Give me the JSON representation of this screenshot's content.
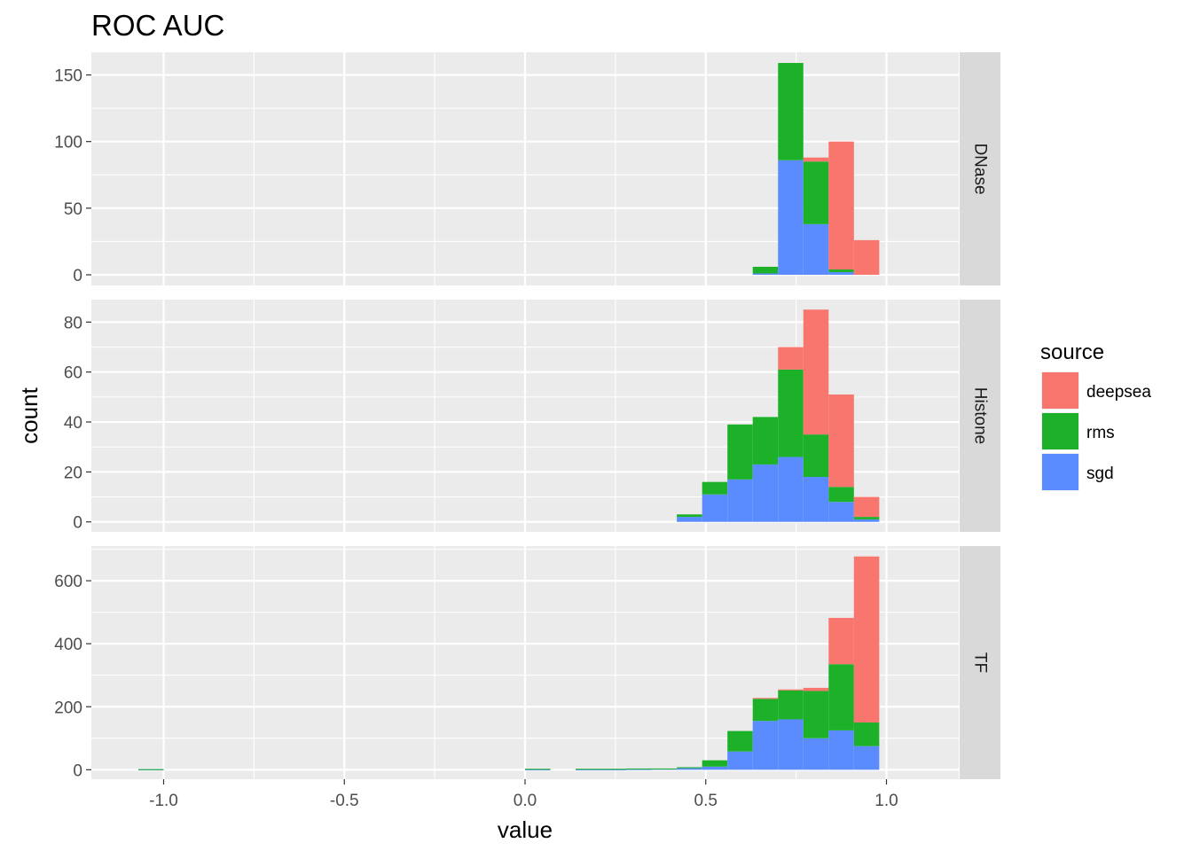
{
  "chart_data": {
    "type": "bar",
    "subtype": "stacked-histogram",
    "title": "ROC AUC",
    "xlabel": "value",
    "ylabel": "count",
    "xlim": [
      -1.2,
      1.2
    ],
    "x_ticks": [
      -1.0,
      -0.5,
      0.0,
      0.5,
      1.0
    ],
    "x_tick_labels": [
      "-1.0",
      "-0.5",
      "0.0",
      "0.5",
      "1.0"
    ],
    "bin_width": 0.07,
    "grid": true,
    "legend": {
      "title": "source",
      "placement": "right",
      "entries": [
        {
          "name": "deepsea",
          "color": "#F8766D"
        },
        {
          "name": "rms",
          "color": "#1DB12A"
        },
        {
          "name": "sgd",
          "color": "#5B8CFF"
        }
      ]
    },
    "stack_order_bottom_to_top": [
      "sgd",
      "rms",
      "deepsea"
    ],
    "panels": [
      {
        "label": "DNase",
        "ylim": [
          -8,
          167
        ],
        "y_ticks": [
          0,
          50,
          100,
          150
        ],
        "bins": [
          {
            "x": 0.665,
            "sgd": 1,
            "rms": 5,
            "deepsea": 0
          },
          {
            "x": 0.735,
            "sgd": 86,
            "rms": 73,
            "deepsea": 0
          },
          {
            "x": 0.805,
            "sgd": 38,
            "rms": 47,
            "deepsea": 3
          },
          {
            "x": 0.875,
            "sgd": 2,
            "rms": 2,
            "deepsea": 96
          },
          {
            "x": 0.945,
            "sgd": 0,
            "rms": 0,
            "deepsea": 26
          }
        ]
      },
      {
        "label": "Histone",
        "ylim": [
          -4,
          89
        ],
        "y_ticks": [
          0,
          20,
          40,
          60,
          80
        ],
        "bins": [
          {
            "x": 0.455,
            "sgd": 2,
            "rms": 1,
            "deepsea": 0
          },
          {
            "x": 0.525,
            "sgd": 11,
            "rms": 5,
            "deepsea": 0
          },
          {
            "x": 0.595,
            "sgd": 17,
            "rms": 22,
            "deepsea": 0
          },
          {
            "x": 0.665,
            "sgd": 23,
            "rms": 19,
            "deepsea": 0
          },
          {
            "x": 0.735,
            "sgd": 26,
            "rms": 35,
            "deepsea": 9
          },
          {
            "x": 0.805,
            "sgd": 18,
            "rms": 17,
            "deepsea": 50
          },
          {
            "x": 0.875,
            "sgd": 8,
            "rms": 6,
            "deepsea": 37
          },
          {
            "x": 0.945,
            "sgd": 1,
            "rms": 1,
            "deepsea": 8
          }
        ]
      },
      {
        "label": "TF",
        "ylim": [
          -30,
          710
        ],
        "y_ticks": [
          0,
          200,
          400,
          600
        ],
        "bins": [
          {
            "x": -1.035,
            "sgd": 1,
            "rms": 1,
            "deepsea": 0
          },
          {
            "x": 0.035,
            "sgd": 1,
            "rms": 2,
            "deepsea": 0
          },
          {
            "x": 0.175,
            "sgd": 1,
            "rms": 2,
            "deepsea": 0
          },
          {
            "x": 0.245,
            "sgd": 1,
            "rms": 2,
            "deepsea": 0
          },
          {
            "x": 0.315,
            "sgd": 2,
            "rms": 2,
            "deepsea": 0
          },
          {
            "x": 0.385,
            "sgd": 3,
            "rms": 1,
            "deepsea": 0
          },
          {
            "x": 0.455,
            "sgd": 5,
            "rms": 3,
            "deepsea": 0
          },
          {
            "x": 0.525,
            "sgd": 10,
            "rms": 20,
            "deepsea": 0
          },
          {
            "x": 0.595,
            "sgd": 58,
            "rms": 65,
            "deepsea": 0
          },
          {
            "x": 0.665,
            "sgd": 155,
            "rms": 70,
            "deepsea": 3
          },
          {
            "x": 0.735,
            "sgd": 160,
            "rms": 92,
            "deepsea": 3
          },
          {
            "x": 0.805,
            "sgd": 100,
            "rms": 150,
            "deepsea": 10
          },
          {
            "x": 0.875,
            "sgd": 125,
            "rms": 210,
            "deepsea": 147
          },
          {
            "x": 0.945,
            "sgd": 75,
            "rms": 75,
            "deepsea": 527
          }
        ]
      }
    ]
  }
}
